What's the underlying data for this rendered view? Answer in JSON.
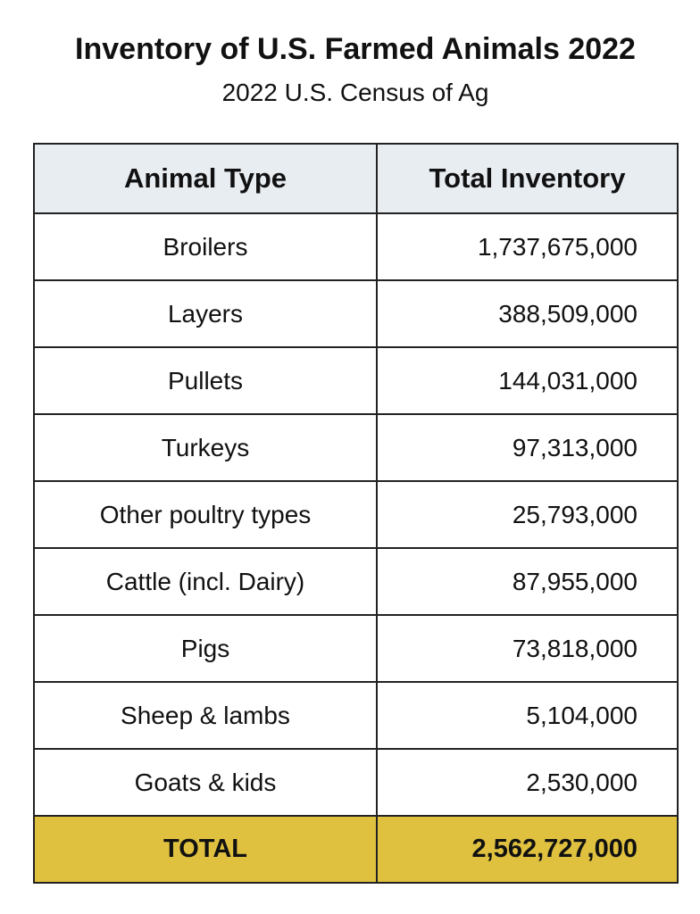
{
  "title": "Inventory of U.S. Farmed Animals 2022",
  "subtitle": "2022 U.S. Census of Ag",
  "table": {
    "headers": [
      "Animal Type",
      "Total Inventory"
    ],
    "rows": [
      {
        "animal": "Broilers",
        "inventory": "1,737,675,000"
      },
      {
        "animal": "Layers",
        "inventory": "388,509,000"
      },
      {
        "animal": "Pullets",
        "inventory": "144,031,000"
      },
      {
        "animal": "Turkeys",
        "inventory": "97,313,000"
      },
      {
        "animal": "Other poultry types",
        "inventory": "25,793,000"
      },
      {
        "animal": "Cattle (incl. Dairy)",
        "inventory": "87,955,000"
      },
      {
        "animal": "Pigs",
        "inventory": "73,818,000"
      },
      {
        "animal": "Sheep & lambs",
        "inventory": "5,104,000"
      },
      {
        "animal": "Goats & kids",
        "inventory": "2,530,000"
      }
    ],
    "total": {
      "label": "TOTAL",
      "inventory": "2,562,727,000"
    }
  },
  "colors": {
    "header_bg": "#e8edf2",
    "total_bg": "#dfc13f",
    "border": "#222222"
  }
}
